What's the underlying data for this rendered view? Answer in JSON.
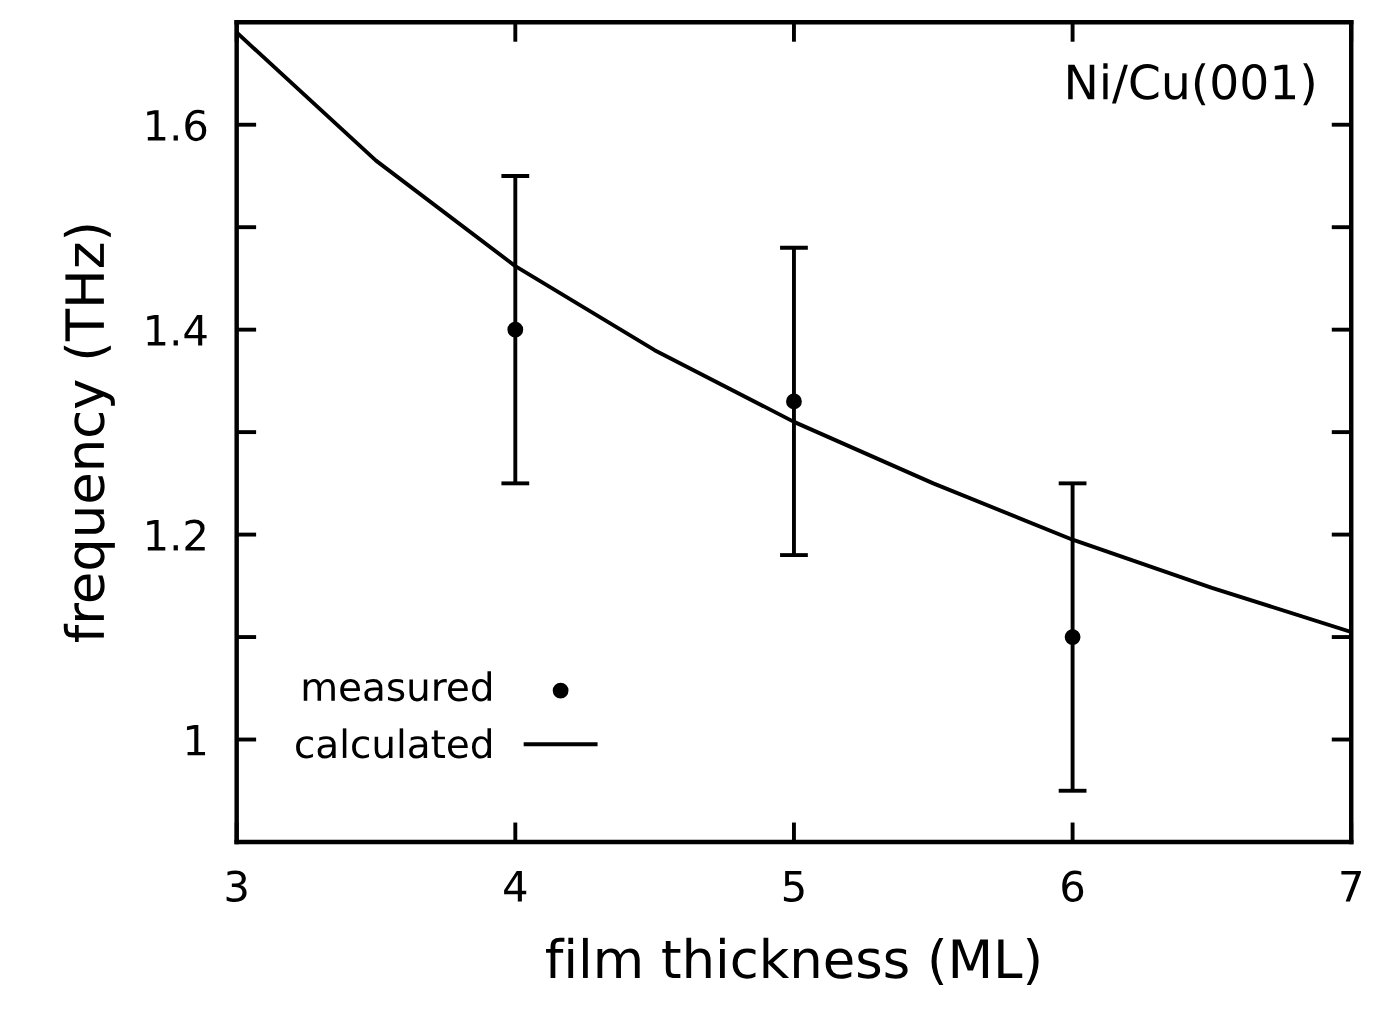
{
  "chart_data": {
    "type": "scatter",
    "xlabel": "film thickness (ML)",
    "ylabel": "frequency (THz)",
    "xlim": [
      3,
      7
    ],
    "ylim": [
      0.9,
      1.7
    ],
    "xticks": [
      3,
      4,
      5,
      6,
      7
    ],
    "yticks": [
      1,
      {
        "value": 1.1,
        "label": null
      },
      1.2,
      {
        "value": 1.3,
        "label": null
      },
      1.4,
      {
        "value": 1.5,
        "label": null
      },
      1.6
    ],
    "annotations": [
      "Ni/Cu(001)"
    ],
    "legend": "bottom left",
    "grid": false,
    "series": [
      {
        "name": "measured",
        "color": "#000000",
        "marker": "circle",
        "x": [
          4,
          5,
          6
        ],
        "values": [
          1.4,
          1.33,
          1.1
        ],
        "errors": [
          0.15,
          0.15,
          0.15
        ]
      },
      {
        "name": "calculated",
        "type": "line",
        "color": "#000000",
        "marker": "none",
        "line_style": "solid",
        "x": [
          3,
          3.5,
          4,
          4.5,
          5,
          5.5,
          6,
          6.5,
          7
        ],
        "values": [
          1.69,
          1.565,
          1.462,
          1.38,
          1.31,
          1.25,
          1.195,
          1.148,
          1.105
        ]
      }
    ]
  }
}
